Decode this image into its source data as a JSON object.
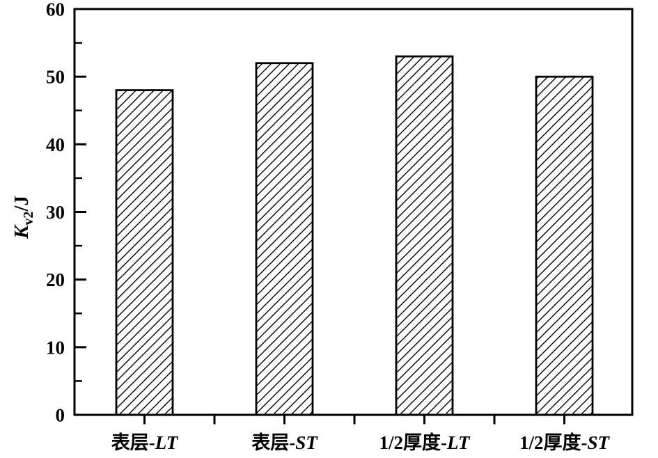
{
  "figure": {
    "background": "#ffffff",
    "foreground": "#000000"
  },
  "chart_data": {
    "type": "bar",
    "title": "",
    "xlabel": "",
    "ylabel": "Kv2/J",
    "ylabel_parts": {
      "main": "K",
      "sub": "v2",
      "rest": "/J"
    },
    "categories": [
      "表层-LT",
      "表层-ST",
      "1/2厚度-LT",
      "1/2厚度-ST"
    ],
    "values": [
      48,
      52,
      53,
      50
    ],
    "ylim": [
      0,
      60
    ],
    "yticks": [
      0,
      10,
      20,
      30,
      40,
      50,
      60
    ],
    "ytick_minor": [
      5,
      15,
      25,
      35,
      45,
      55
    ],
    "grid": false,
    "legend": null,
    "frame": "full-box",
    "bar_style": {
      "fill": "#ffffff",
      "hatch": "diagonal-forward",
      "edge_color": "#000000"
    },
    "axis_color": "#000000",
    "tick_direction": {
      "y": "in",
      "x": "out"
    }
  }
}
